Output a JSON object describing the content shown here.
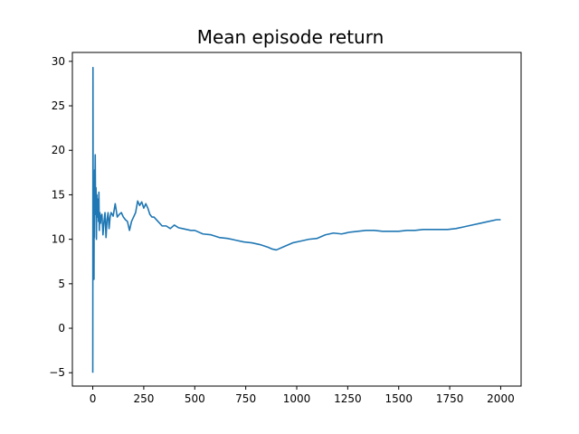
{
  "chart_data": {
    "type": "line",
    "title": "Mean episode return",
    "xlabel": "",
    "ylabel": "",
    "xlim": [
      -100,
      2100
    ],
    "ylim": [
      -6.5,
      31
    ],
    "x_ticks": [
      0,
      250,
      500,
      750,
      1000,
      1250,
      1500,
      1750,
      2000
    ],
    "y_ticks": [
      -5,
      0,
      5,
      10,
      15,
      20,
      25,
      30
    ],
    "grid": false,
    "legend": "none",
    "color": "#1f77b4",
    "series": [
      {
        "x": [
          0,
          1,
          2,
          3,
          4,
          5,
          6,
          7,
          8,
          9,
          10,
          12,
          14,
          16,
          18,
          20,
          22,
          25,
          28,
          30,
          32,
          35,
          38,
          40,
          45,
          50,
          55,
          60,
          65,
          70,
          75,
          80,
          85,
          90,
          100,
          110,
          120,
          130,
          140,
          150,
          160,
          170,
          180,
          190,
          200,
          210,
          220,
          230,
          240,
          250,
          260,
          270,
          280,
          290,
          300,
          320,
          340,
          360,
          380,
          400,
          420,
          440,
          460,
          480,
          500,
          540,
          580,
          620,
          660,
          700,
          740,
          780,
          820,
          860,
          880,
          900,
          940,
          980,
          1020,
          1060,
          1100,
          1140,
          1180,
          1220,
          1260,
          1300,
          1340,
          1380,
          1420,
          1460,
          1500,
          1540,
          1580,
          1620,
          1660,
          1700,
          1740,
          1780,
          1820,
          1860,
          1900,
          1940,
          1980,
          2000
        ],
        "y": [
          -5.0,
          29.3,
          10.2,
          5.5,
          6.0,
          10.4,
          5.5,
          16.0,
          10.2,
          17.8,
          13.0,
          19.5,
          12.8,
          15.8,
          10.0,
          15.0,
          12.5,
          14.5,
          12.0,
          15.3,
          11.0,
          13.0,
          11.8,
          12.5,
          12.8,
          10.5,
          12.0,
          13.0,
          10.2,
          12.2,
          13.0,
          11.2,
          12.5,
          13.0,
          12.6,
          14.0,
          12.5,
          12.8,
          13.0,
          12.5,
          12.2,
          12.0,
          11.0,
          12.0,
          12.5,
          13.0,
          14.3,
          13.8,
          14.2,
          13.5,
          14.0,
          13.5,
          12.8,
          12.5,
          12.5,
          12.0,
          11.5,
          11.5,
          11.2,
          11.6,
          11.3,
          11.2,
          11.1,
          11.0,
          11.0,
          10.6,
          10.5,
          10.2,
          10.1,
          9.9,
          9.7,
          9.6,
          9.4,
          9.1,
          8.9,
          8.8,
          9.2,
          9.6,
          9.8,
          10.0,
          10.1,
          10.5,
          10.7,
          10.6,
          10.8,
          10.9,
          11.0,
          11.0,
          10.9,
          10.9,
          10.9,
          11.0,
          11.0,
          11.1,
          11.1,
          11.1,
          11.1,
          11.2,
          11.4,
          11.6,
          11.8,
          12.0,
          12.2,
          12.2
        ]
      }
    ]
  }
}
